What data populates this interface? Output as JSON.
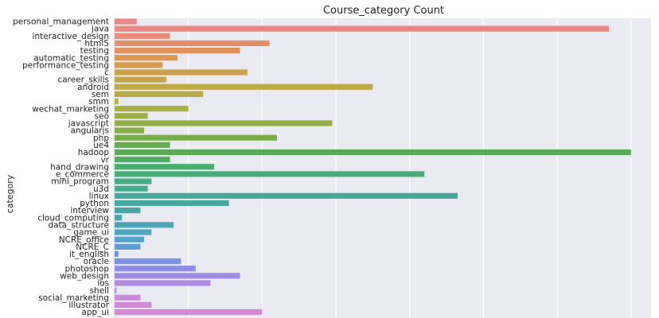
{
  "chart_data": {
    "type": "bar",
    "orientation": "horizontal",
    "title": "Course_category Count",
    "xlabel": "",
    "ylabel": "category",
    "grid": true,
    "background": "#eaeaf2",
    "categories": [
      "personal_management",
      "java",
      "interactive_design",
      "html5",
      "testing",
      "automatic_testing",
      "performance_testing",
      "c",
      "career_skills",
      "android",
      "sem",
      "smm",
      "wechat_marketing",
      "seo",
      "javascript",
      "angularjs",
      "php",
      "ue4",
      "hadoop",
      "vr",
      "hand_drawing",
      "e_commerce",
      "mini_program",
      "u3d",
      "linux",
      "python",
      "interview",
      "cloud_computing",
      "data_structure",
      "game_ui",
      "NCRE_office",
      "NCRE_C",
      "it_english",
      "oracle",
      "photoshop",
      "web_design",
      "ios",
      "shell",
      "social_marketing",
      "illustrator",
      "app_ui"
    ],
    "values": [
      6,
      134,
      15,
      42,
      34,
      17,
      13,
      36,
      14,
      70,
      24,
      1,
      20,
      9,
      59,
      8,
      44,
      15,
      140,
      15,
      27,
      84,
      10,
      9,
      93,
      31,
      7,
      2,
      16,
      10,
      8,
      7,
      1,
      18,
      22,
      34,
      26,
      0.5,
      7,
      10,
      40
    ],
    "xlim": [
      0,
      145
    ],
    "gridlines": [
      20,
      40,
      60,
      80,
      100,
      120,
      140
    ]
  }
}
